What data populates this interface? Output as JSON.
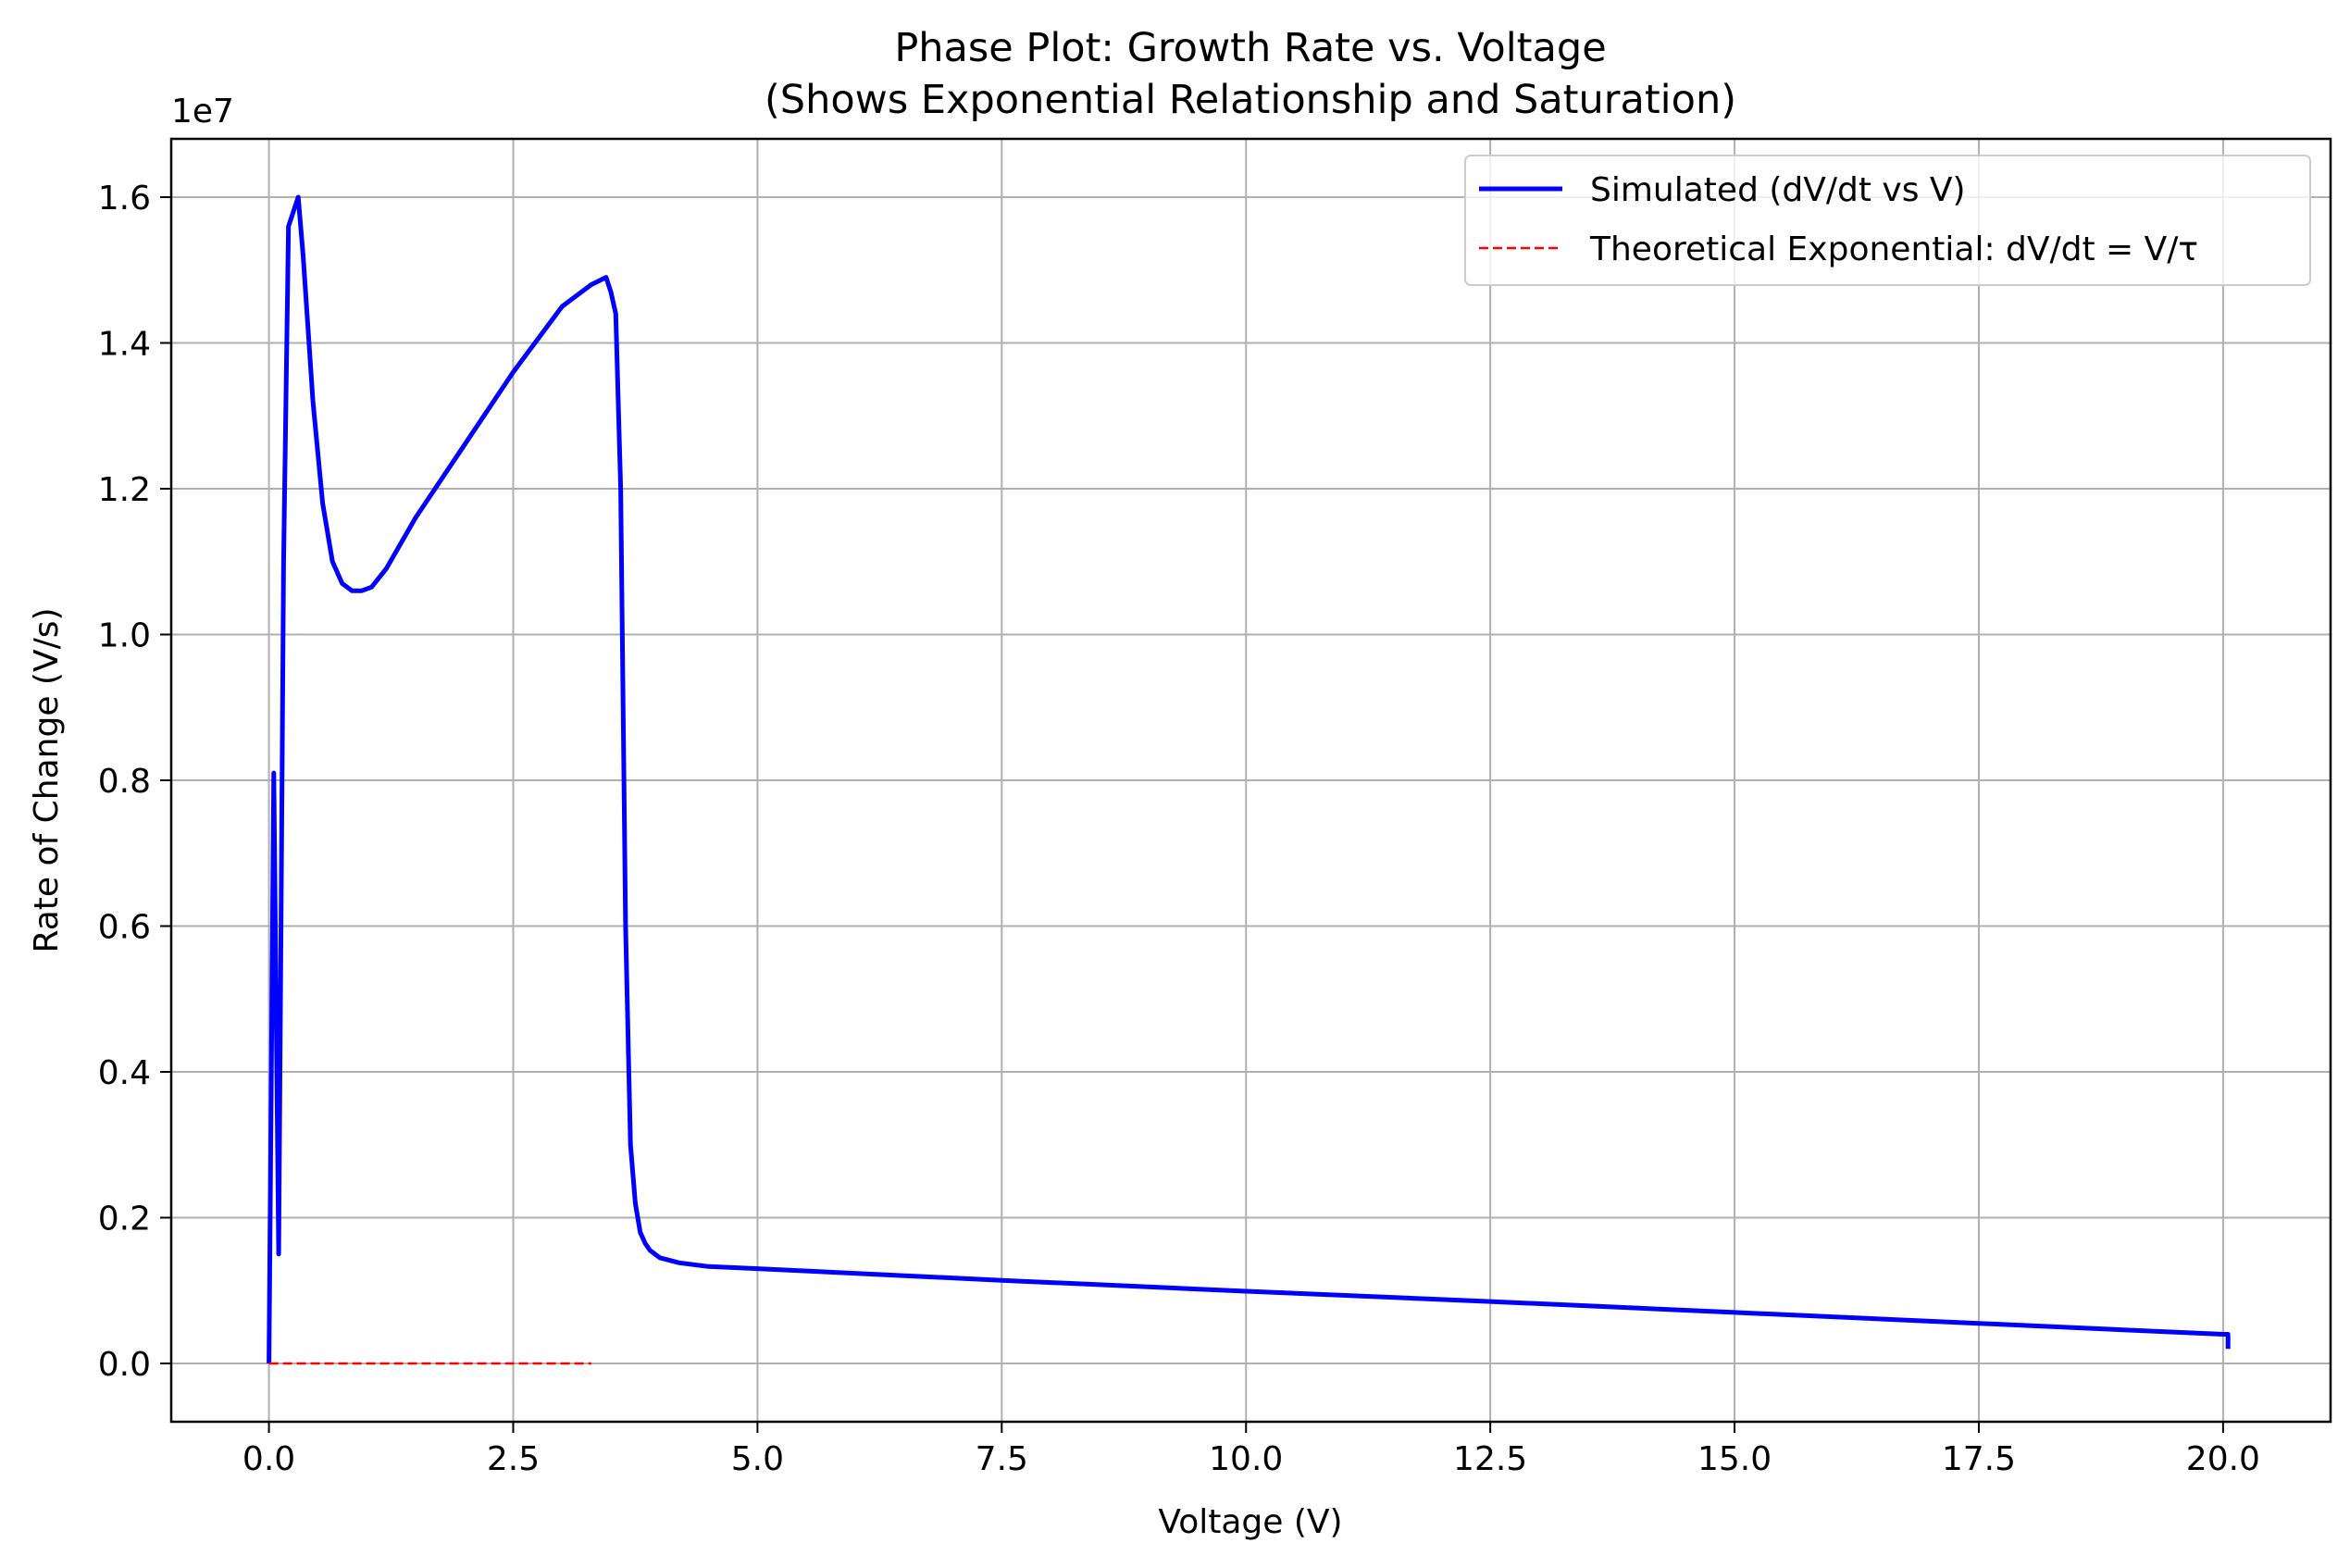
{
  "chart_data": {
    "type": "line",
    "title": "Phase Plot: Growth Rate vs. Voltage",
    "subtitle": "(Shows Exponential Relationship and Saturation)",
    "xlabel": "Voltage (V)",
    "ylabel": "Rate of Change (V/s)",
    "y_offset_label": "1e7",
    "xlim": [
      -1.0,
      21.1
    ],
    "ylim": [
      -0.08,
      1.68
    ],
    "x_ticks": [
      0.0,
      2.5,
      5.0,
      7.5,
      10.0,
      12.5,
      15.0,
      17.5,
      20.0
    ],
    "x_tick_labels": [
      "0.0",
      "2.5",
      "5.0",
      "7.5",
      "10.0",
      "12.5",
      "15.0",
      "17.5",
      "20.0"
    ],
    "y_ticks": [
      0.0,
      0.2,
      0.4,
      0.6,
      0.8,
      1.0,
      1.2,
      1.4,
      1.6
    ],
    "y_tick_labels": [
      "0.0",
      "0.2",
      "0.4",
      "0.6",
      "0.8",
      "1.0",
      "1.2",
      "1.4",
      "1.6"
    ],
    "grid": true,
    "legend_position": "top-right",
    "series": [
      {
        "name": "Simulated (dV/dt vs V)",
        "color": "#0000ff",
        "style": "solid",
        "x": [
          0.0,
          0.05,
          0.1,
          0.15,
          0.2,
          0.3,
          0.35,
          0.45,
          0.55,
          0.65,
          0.75,
          0.85,
          0.95,
          1.05,
          1.2,
          1.5,
          2.0,
          2.5,
          3.0,
          3.3,
          3.45,
          3.5,
          3.55,
          3.6,
          3.65,
          3.7,
          3.75,
          3.8,
          3.85,
          3.9,
          4.0,
          4.2,
          4.5,
          5.0,
          7.5,
          10.0,
          12.5,
          15.0,
          17.5,
          20.0,
          20.05,
          20.05
        ],
        "y": [
          0.0,
          0.81,
          0.15,
          1.1,
          1.56,
          1.6,
          1.52,
          1.32,
          1.18,
          1.1,
          1.07,
          1.06,
          1.06,
          1.065,
          1.09,
          1.16,
          1.26,
          1.36,
          1.45,
          1.48,
          1.49,
          1.47,
          1.44,
          1.2,
          0.6,
          0.3,
          0.22,
          0.18,
          0.165,
          0.155,
          0.145,
          0.138,
          0.133,
          0.13,
          0.114,
          0.099,
          0.085,
          0.07,
          0.055,
          0.04,
          0.04,
          0.02
        ]
      },
      {
        "name": "Theoretical Exponential: dV/dt = V/τ",
        "color": "#ff0000",
        "style": "dashed",
        "x": [
          0.0,
          3.3
        ],
        "y": [
          0.0,
          0.0
        ]
      }
    ]
  }
}
